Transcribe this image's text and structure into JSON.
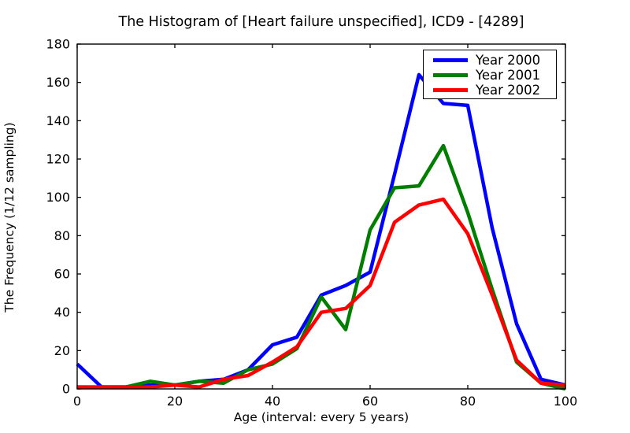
{
  "title": "The Histogram of [Heart failure unspecified], ICD9 - [4289]",
  "chart_data": {
    "type": "line",
    "title": "The Histogram of [Heart failure unspecified], ICD9 - [4289]",
    "xlabel": "Age (interval: every 5 years)",
    "ylabel": "The Frequency (1/12 sampling)",
    "xlim": [
      0,
      100
    ],
    "ylim": [
      0,
      180
    ],
    "xticks": [
      0,
      20,
      40,
      60,
      80,
      100
    ],
    "yticks": [
      0,
      20,
      40,
      60,
      80,
      100,
      120,
      140,
      160,
      180
    ],
    "grid": false,
    "legend_position": "upper right",
    "x": [
      0,
      5,
      10,
      15,
      20,
      25,
      30,
      35,
      40,
      45,
      50,
      55,
      60,
      65,
      70,
      75,
      80,
      85,
      90,
      95,
      100
    ],
    "series": [
      {
        "name": "Year 2000",
        "color": "#0000ff",
        "values": [
          13,
          1,
          1,
          2,
          2,
          4,
          5,
          10,
          23,
          27,
          49,
          54,
          61,
          112,
          164,
          149,
          148,
          84,
          34,
          5,
          2
        ]
      },
      {
        "name": "Year 2001",
        "color": "#007e00",
        "values": [
          1,
          1,
          1,
          4,
          2,
          4,
          3,
          10,
          13,
          21,
          48,
          31,
          83,
          105,
          106,
          127,
          92,
          52,
          14,
          3,
          0
        ]
      },
      {
        "name": "Year 2002",
        "color": "#ff0000",
        "values": [
          1,
          1,
          1,
          1,
          2,
          1,
          5,
          7,
          14,
          22,
          40,
          42,
          54,
          87,
          96,
          99,
          81,
          49,
          15,
          3,
          2
        ]
      }
    ]
  }
}
